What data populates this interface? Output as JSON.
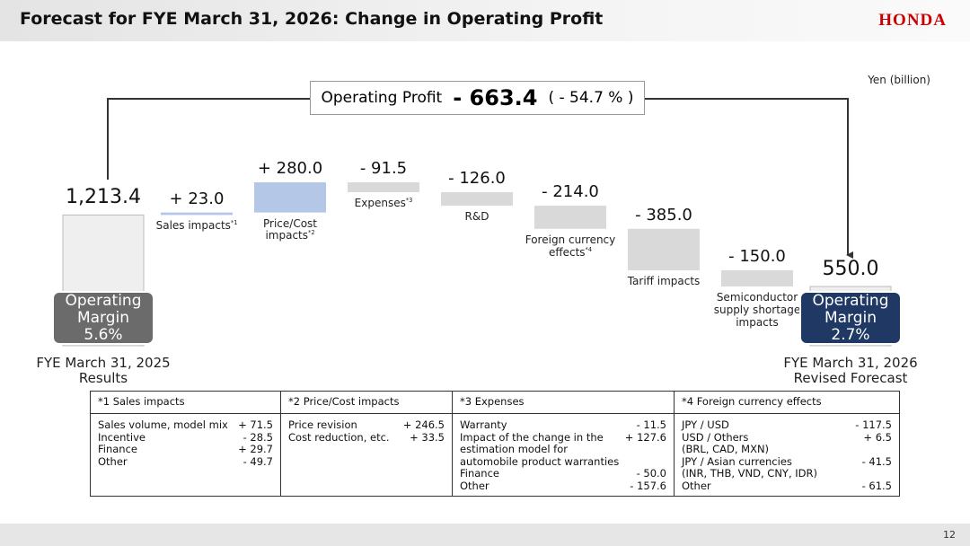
{
  "header": {
    "title": "Forecast for FYE March 31, 2026: Change in Operating Profit",
    "logo": "HONDA"
  },
  "chart_data": {
    "type": "waterfall",
    "unit": "Yen (billion)",
    "categories": [
      "FYE March 31, 2025\nResults",
      "Sales impacts*1",
      "Price/Cost\nimpacts*2",
      "Expenses*3",
      "R&D",
      "Foreign currency\neffects*4",
      "Tariff impacts",
      "Semiconductor\nsupply shortage\nimpacts",
      "FYE March 31, 2026\nRevised Forecast"
    ],
    "values": [
      1213.4,
      23.0,
      280.0,
      -91.5,
      -126.0,
      -214.0,
      -385.0,
      -150.0,
      550.0
    ],
    "value_labels": [
      "1,213.4",
      "+ 23.0",
      "+ 280.0",
      "- 91.5",
      "- 126.0",
      "- 214.0",
      "- 385.0",
      "- 150.0",
      "550.0"
    ],
    "colors": [
      "#efefef",
      "#b4c7e7",
      "#b4c7e7",
      "#d9d9d9",
      "#d9d9d9",
      "#d9d9d9",
      "#d9d9d9",
      "#d9d9d9",
      "#efefef"
    ],
    "callout": {
      "label": "Operating Profit",
      "change": "- 663.4",
      "percent": "( - 54.7 % )"
    },
    "margins": [
      {
        "text": "Operating\nMargin\n5.6%",
        "color": "#6b6b6b"
      },
      {
        "text": "Operating\nMargin\n2.7%",
        "color": "#1f3864"
      }
    ]
  },
  "notes": [
    {
      "title": "*1 Sales impacts",
      "rows": [
        [
          "Sales volume, model mix",
          "+ 71.5"
        ],
        [
          "Incentive",
          "- 28.5"
        ],
        [
          "Finance",
          "+ 29.7"
        ],
        [
          "Other",
          "- 49.7"
        ]
      ]
    },
    {
      "title": "*2 Price/Cost impacts",
      "rows": [
        [
          "Price revision",
          "+ 246.5"
        ],
        [
          "Cost reduction, etc.",
          "+ 33.5"
        ]
      ]
    },
    {
      "title": "*3 Expenses",
      "rows": [
        [
          "Warranty",
          "- 11.5"
        ],
        [
          "Impact of the change in the\nestimation model for\nautomobile product warranties",
          "+ 127.6"
        ],
        [
          "Finance",
          "- 50.0"
        ],
        [
          "Other",
          "- 157.6"
        ]
      ]
    },
    {
      "title": "*4 Foreign currency effects",
      "rows": [
        [
          "JPY / USD",
          "- 117.5"
        ],
        [
          "USD / Others\n(BRL, CAD, MXN)",
          "+ 6.5"
        ],
        [
          "JPY / Asian currencies\n(INR, THB, VND, CNY, IDR)",
          "- 41.5"
        ],
        [
          "Other",
          "- 61.5"
        ]
      ]
    }
  ],
  "page_number": "12"
}
